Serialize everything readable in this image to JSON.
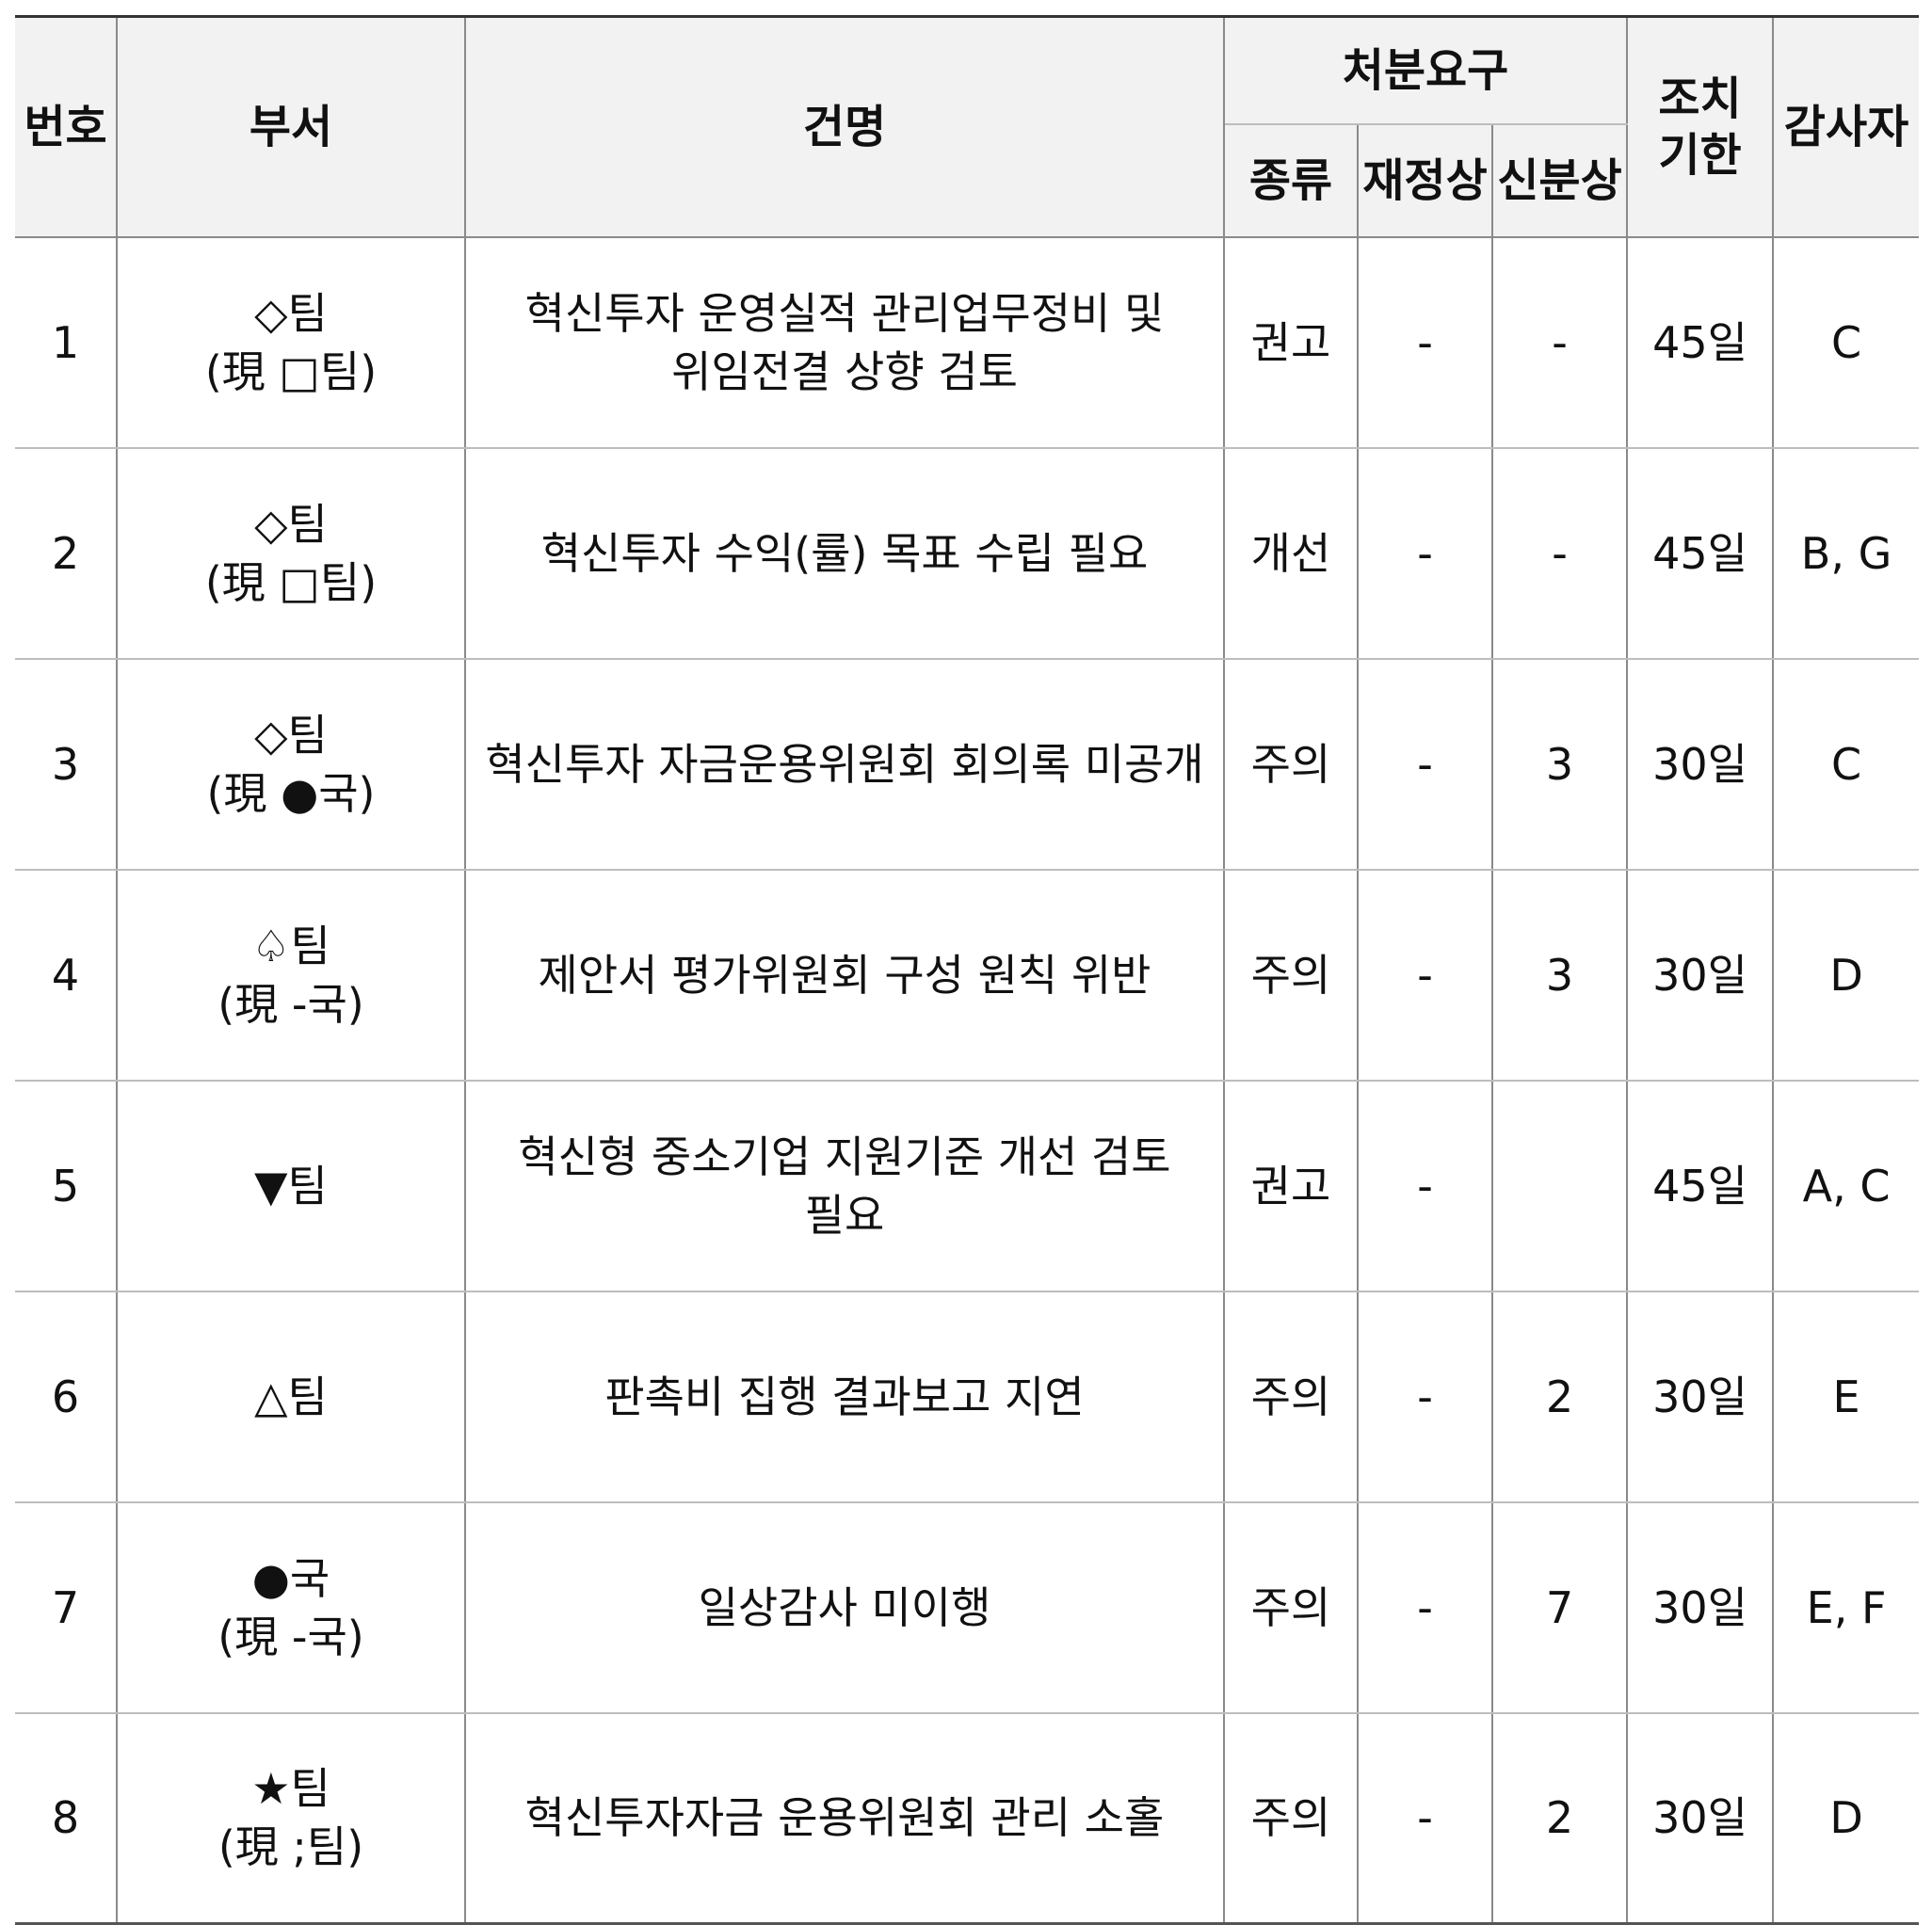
{
  "header": {
    "no": "번호",
    "dept": "부서",
    "title": "건명",
    "disposition": "처분요구",
    "type": "종류",
    "financial": "재정상",
    "personnel": "신분상",
    "deadline": [
      "조치",
      "기한"
    ],
    "auditor": "감사자"
  },
  "rows": [
    {
      "no": "1",
      "dept": [
        "◇팀",
        "(現 □팀)"
      ],
      "title": [
        "혁신투자 운영실적 관리업무정비 및",
        "위임전결 상향 검토"
      ],
      "type": "권고",
      "financial": "-",
      "personnel": "-",
      "deadline": "45일",
      "auditor": "C"
    },
    {
      "no": "2",
      "dept": [
        "◇팀",
        "(現 □팀)"
      ],
      "title": [
        "혁신투자 수익(률) 목표 수립 필요"
      ],
      "type": "개선",
      "financial": "-",
      "personnel": "-",
      "deadline": "45일",
      "auditor": "B, G"
    },
    {
      "no": "3",
      "dept": [
        "◇팀",
        "(現 ●국)"
      ],
      "title": [
        "혁신투자 자금운용위원회 회의록 미공개"
      ],
      "type": "주의",
      "financial": "-",
      "personnel": "3",
      "deadline": "30일",
      "auditor": "C"
    },
    {
      "no": "4",
      "dept": [
        "♤팀",
        "(現 -국)"
      ],
      "title": [
        "제안서 평가위원회 구성 원칙 위반"
      ],
      "type": "주의",
      "financial": "-",
      "personnel": "3",
      "deadline": "30일",
      "auditor": "D"
    },
    {
      "no": "5",
      "dept": [
        "▼팀"
      ],
      "title": [
        "혁신형 중소기업 지원기준 개선 검토",
        "필요"
      ],
      "type": "권고",
      "financial": "-",
      "personnel": "",
      "deadline": "45일",
      "auditor": "A, C"
    },
    {
      "no": "6",
      "dept": [
        "△팀"
      ],
      "title": [
        "판촉비 집행 결과보고 지연"
      ],
      "type": "주의",
      "financial": "-",
      "personnel": "2",
      "deadline": "30일",
      "auditor": "E"
    },
    {
      "no": "7",
      "dept": [
        "●국",
        "(現 -국)"
      ],
      "title": [
        "일상감사 미이행"
      ],
      "type": "주의",
      "financial": "-",
      "personnel": "7",
      "deadline": "30일",
      "auditor": "E, F"
    },
    {
      "no": "8",
      "dept": [
        "★팀",
        "(現 ;팀)"
      ],
      "title": [
        "혁신투자자금 운용위원회 관리 소홀"
      ],
      "type": "주의",
      "financial": "-",
      "personnel": "2",
      "deadline": "30일",
      "auditor": "D"
    }
  ]
}
